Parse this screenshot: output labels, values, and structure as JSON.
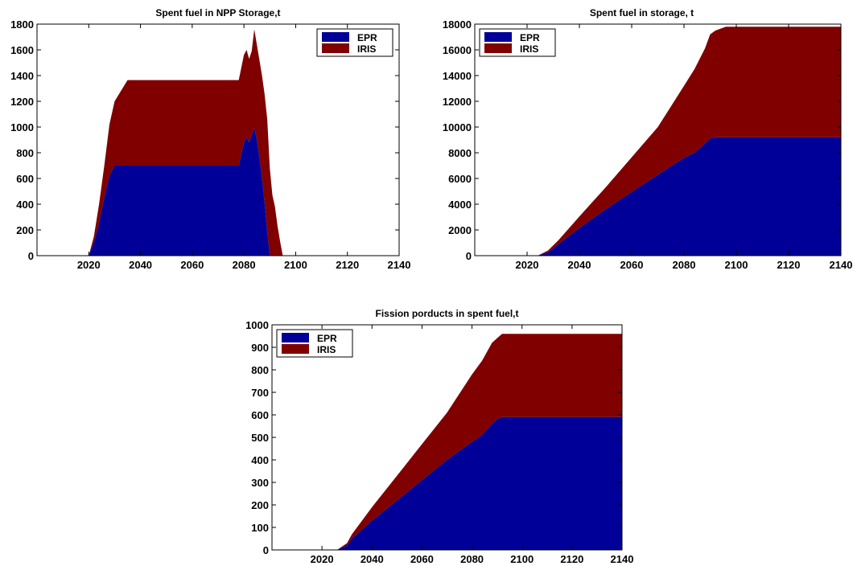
{
  "colors": {
    "EPR": "#000099",
    "IRIS": "#800000",
    "axes": "#000000",
    "background": "#ffffff"
  },
  "chart_data": [
    {
      "type": "area",
      "stacked": true,
      "title": "Spent fuel in NPP Storage,t",
      "xlabel": "",
      "ylabel": "",
      "xlim": [
        2000,
        2140
      ],
      "ylim": [
        0,
        1800
      ],
      "xticks": [
        2020,
        2040,
        2060,
        2080,
        2100,
        2120,
        2140
      ],
      "yticks": [
        0,
        200,
        400,
        600,
        800,
        1000,
        1200,
        1400,
        1600,
        1800
      ],
      "legend": "top-right",
      "x": [
        2020,
        2022,
        2024,
        2026,
        2028,
        2030,
        2035,
        2078,
        2080,
        2081,
        2082,
        2083,
        2084,
        2085,
        2086,
        2087,
        2088,
        2089,
        2090,
        2091,
        2092,
        2093,
        2094,
        2095,
        2140
      ],
      "series": [
        {
          "name": "EPR",
          "values": [
            0,
            100,
            250,
            450,
            620,
            700,
            700,
            700,
            880,
            920,
            880,
            940,
            990,
            900,
            760,
            600,
            400,
            180,
            0,
            0,
            0,
            0,
            0,
            0,
            0
          ]
        },
        {
          "name": "IRIS",
          "values": [
            0,
            50,
            150,
            250,
            400,
            500,
            665,
            665,
            680,
            680,
            650,
            650,
            770,
            740,
            760,
            800,
            850,
            880,
            680,
            470,
            380,
            230,
            110,
            0,
            0
          ]
        }
      ]
    },
    {
      "type": "area",
      "stacked": true,
      "title": "Spent fuel in storage, t",
      "xlabel": "",
      "ylabel": "",
      "xlim": [
        2000,
        2140
      ],
      "ylim": [
        0,
        18000
      ],
      "xticks": [
        2020,
        2040,
        2060,
        2080,
        2100,
        2120,
        2140
      ],
      "yticks": [
        0,
        2000,
        4000,
        6000,
        8000,
        10000,
        12000,
        14000,
        16000,
        18000
      ],
      "legend": "top-left",
      "x": [
        2024,
        2028,
        2032,
        2040,
        2050,
        2060,
        2070,
        2080,
        2084,
        2088,
        2090,
        2092,
        2096,
        2140
      ],
      "series": [
        {
          "name": "EPR",
          "values": [
            0,
            250,
            900,
            2150,
            3600,
            4950,
            6300,
            7600,
            8000,
            8700,
            9100,
            9200,
            9200,
            9200
          ]
        },
        {
          "name": "IRIS",
          "values": [
            0,
            150,
            300,
            900,
            1700,
            2700,
            3700,
            5600,
            6500,
            7400,
            8100,
            8300,
            8600,
            8600
          ]
        }
      ]
    },
    {
      "type": "area",
      "stacked": true,
      "title": "Fission porducts in spent fuel,t",
      "xlabel": "",
      "ylabel": "",
      "xlim": [
        2000,
        2140
      ],
      "ylim": [
        0,
        1000
      ],
      "xticks": [
        2020,
        2040,
        2060,
        2080,
        2100,
        2120,
        2140
      ],
      "yticks": [
        0,
        100,
        200,
        300,
        400,
        500,
        600,
        700,
        800,
        900,
        1000
      ],
      "legend": "top-left",
      "x": [
        2026,
        2030,
        2032,
        2040,
        2050,
        2060,
        2070,
        2080,
        2084,
        2088,
        2090,
        2092,
        2096,
        2140
      ],
      "series": [
        {
          "name": "EPR",
          "values": [
            0,
            20,
            50,
            130,
            220,
            310,
            400,
            480,
            510,
            560,
            580,
            590,
            590,
            590
          ]
        },
        {
          "name": "IRIS",
          "values": [
            0,
            10,
            20,
            60,
            110,
            160,
            210,
            300,
            330,
            360,
            360,
            370,
            370,
            370
          ]
        }
      ]
    }
  ]
}
